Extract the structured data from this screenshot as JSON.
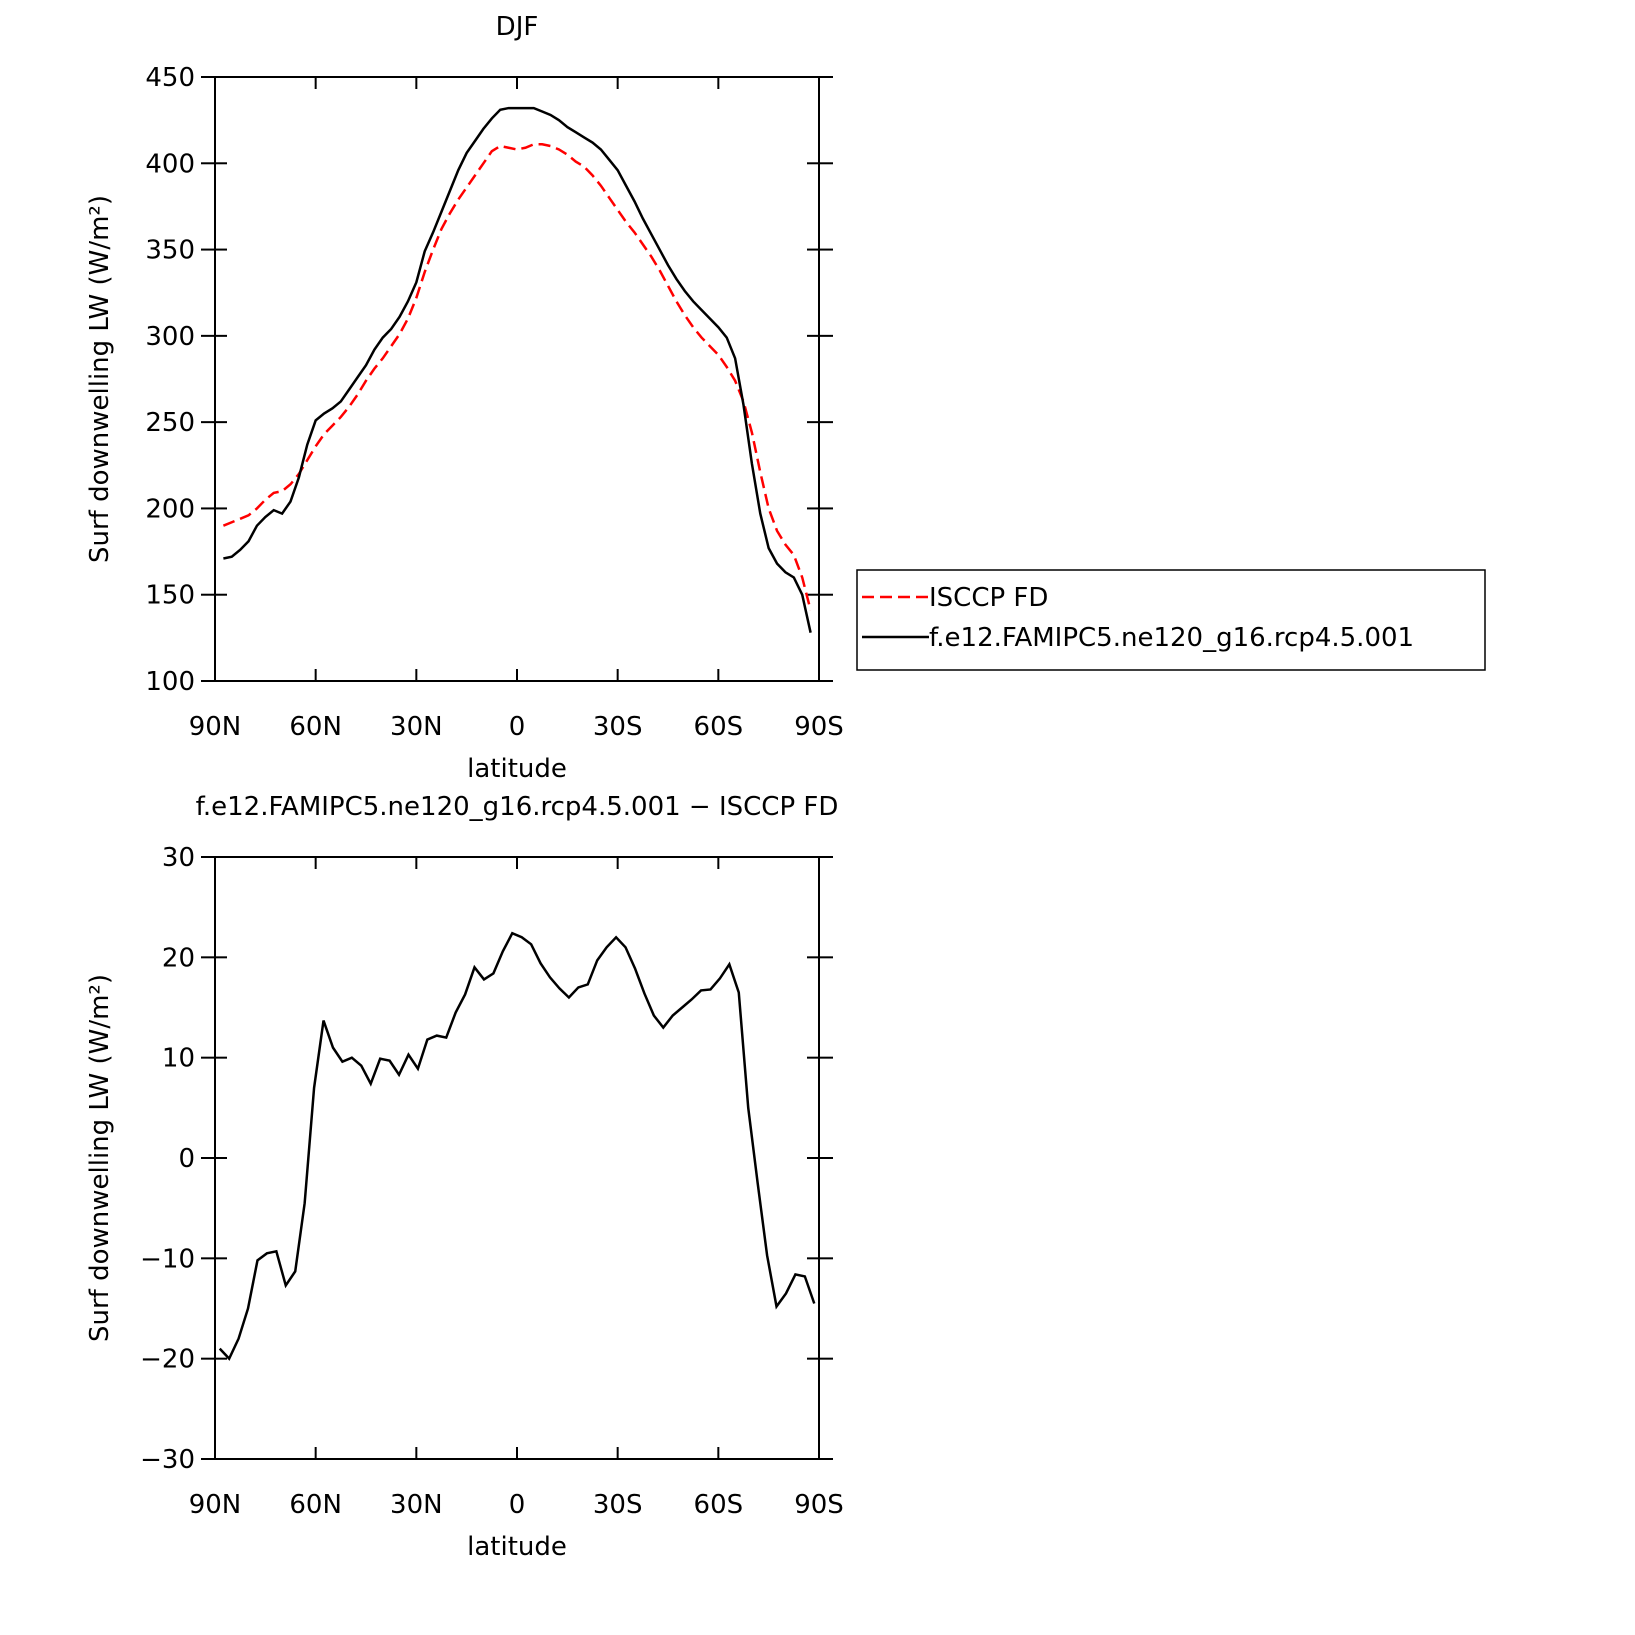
{
  "chart_data": [
    {
      "type": "line",
      "title": "DJF",
      "xlabel": "latitude",
      "ylabel": "Surf downwelling LW (W/m²)",
      "x": [
        87.5,
        85,
        82.5,
        80,
        77.5,
        75,
        72.5,
        70,
        67.5,
        65,
        62.5,
        60,
        57.5,
        55,
        52.5,
        50,
        47.5,
        45,
        42.5,
        40,
        37.5,
        35,
        32.5,
        30,
        27.5,
        25,
        22.5,
        20,
        17.5,
        15,
        12.5,
        10,
        7.5,
        5,
        2.5,
        0,
        -2.5,
        -5,
        -7.5,
        -10,
        -12.5,
        -15,
        -17.5,
        -20,
        -22.5,
        -25,
        -27.5,
        -30,
        -32.5,
        -35,
        -37.5,
        -40,
        -42.5,
        -45,
        -47.5,
        -50,
        -52.5,
        -55,
        -57.5,
        -60,
        -62.5,
        -65,
        -67.5,
        -70,
        -72.5,
        -75,
        -77.5,
        -80,
        -82.5,
        -85,
        -87.5
      ],
      "series": [
        {
          "name": "ISCCP FD",
          "color": "#ff0000",
          "dashed": true,
          "values": [
            190,
            192,
            194,
            196,
            200,
            205,
            209,
            210,
            214,
            220,
            228,
            236,
            243,
            248,
            253,
            259,
            266,
            274,
            281,
            287,
            294,
            301,
            310,
            322,
            337,
            350,
            362,
            371,
            379,
            386,
            393,
            400,
            407,
            410,
            409,
            408,
            409,
            411,
            411,
            410,
            408,
            405,
            401,
            398,
            393,
            387,
            380,
            373,
            366,
            360,
            353,
            346,
            338,
            329,
            320,
            312,
            305,
            299,
            294,
            289,
            282,
            274,
            262,
            244,
            221,
            200,
            187,
            179,
            173,
            160,
            141
          ]
        },
        {
          "name": "f.e12.FAMIPC5.ne120_g16.rcp4.5.001",
          "color": "#000000",
          "dashed": false,
          "values": [
            171,
            172,
            176,
            181,
            190,
            195,
            199,
            197,
            204,
            218,
            237,
            251,
            255,
            258,
            262,
            269,
            276,
            283,
            292,
            299,
            304,
            311,
            320,
            331,
            349,
            360,
            372,
            384,
            396,
            406,
            413,
            420,
            426,
            431,
            432,
            432,
            432,
            432,
            430,
            428,
            425,
            421,
            418,
            415,
            412,
            408,
            402,
            396,
            387,
            378,
            368,
            359,
            350,
            341,
            333,
            326,
            320,
            315,
            310,
            305,
            299,
            287,
            260,
            226,
            197,
            177,
            168,
            163,
            160,
            150,
            128
          ]
        }
      ],
      "xlim": [
        90,
        -90
      ],
      "xticks": [
        {
          "value": 90,
          "label": "90N"
        },
        {
          "value": 60,
          "label": "60N"
        },
        {
          "value": 30,
          "label": "30N"
        },
        0,
        {
          "value": -30,
          "label": "30S"
        },
        {
          "value": -60,
          "label": "60S"
        },
        {
          "value": -90,
          "label": "90S"
        }
      ],
      "ylim": [
        100,
        450
      ],
      "yticks": [
        100,
        150,
        200,
        250,
        300,
        350,
        400,
        450
      ],
      "legend": "right"
    },
    {
      "type": "line",
      "title": "f.e12.FAMIPC5.ne120_g16.rcp4.5.001 − ISCCP FD",
      "xlabel": "latitude",
      "ylabel": "Surf downwelling LW (W/m²)",
      "x": [
        88.59,
        85.78,
        82.97,
        80.16,
        77.34,
        74.53,
        71.72,
        68.91,
        66.09,
        63.28,
        60.47,
        57.66,
        54.84,
        52.03,
        49.22,
        46.41,
        43.59,
        40.78,
        37.97,
        35.16,
        32.34,
        29.53,
        26.72,
        23.91,
        21.09,
        18.28,
        15.47,
        12.66,
        9.84,
        7.03,
        4.22,
        1.41,
        -1.41,
        -4.22,
        -7.03,
        -9.84,
        -12.66,
        -15.47,
        -18.28,
        -21.09,
        -23.91,
        -26.72,
        -29.53,
        -32.34,
        -35.16,
        -37.97,
        -40.78,
        -43.59,
        -46.41,
        -49.22,
        -52.03,
        -54.84,
        -57.66,
        -60.47,
        -63.28,
        -66.09,
        -68.91,
        -71.72,
        -74.53,
        -77.34,
        -80.16,
        -82.97,
        -85.78,
        -88.59
      ],
      "series": [
        {
          "color": "#000000",
          "dashed": false,
          "values": [
            -19,
            -20,
            -18,
            -15,
            -10.2,
            -9.5,
            -9.3,
            -12.7,
            -11.3,
            -4.5,
            7,
            13.7,
            11,
            9.6,
            10,
            9.2,
            7.4,
            9.9,
            9.7,
            8.3,
            10.3,
            8.9,
            11.8,
            12.2,
            12,
            14.5,
            16.3,
            19,
            17.8,
            18.4,
            20.6,
            22.4,
            22,
            21.3,
            19.4,
            18,
            16.9,
            16,
            17,
            17.3,
            19.7,
            21,
            22,
            21,
            18.9,
            16.4,
            14.2,
            13,
            14.2,
            15,
            15.8,
            16.7,
            16.8,
            17.9,
            19.3,
            16.5,
            5,
            -2.5,
            -9.7,
            -14.8,
            -13.5,
            -11.6,
            -11.8,
            -14.5
          ]
        }
      ],
      "xlim": [
        90,
        -90
      ],
      "xticks": [
        {
          "value": 90,
          "label": "90N"
        },
        {
          "value": 60,
          "label": "60N"
        },
        {
          "value": 30,
          "label": "30N"
        },
        0,
        {
          "value": -30,
          "label": "30S"
        },
        {
          "value": -60,
          "label": "60S"
        },
        {
          "value": -90,
          "label": "90S"
        }
      ],
      "ylim": [
        -30,
        30
      ],
      "yticks": [
        {
          "value": -30,
          "label": "−30"
        },
        {
          "value": -20,
          "label": "−20"
        },
        {
          "value": -10,
          "label": "−10"
        },
        0,
        10,
        20,
        30
      ]
    }
  ]
}
